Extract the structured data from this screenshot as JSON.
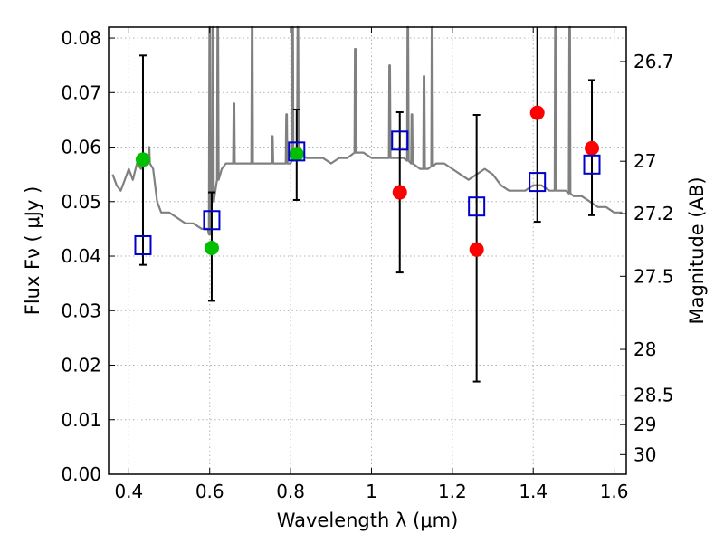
{
  "chart_data": {
    "type": "scatter",
    "title": "",
    "xlabel": "Wavelength  λ (μm)",
    "ylabel": "Flux  Fν  ( μJy )",
    "ylabel_right": "Magnitude (AB)",
    "xlim": [
      0.35,
      1.63
    ],
    "ylim": [
      0.0,
      0.082
    ],
    "grid": true,
    "x_ticks": [
      0.4,
      0.6,
      0.8,
      1.0,
      1.2,
      1.4,
      1.6
    ],
    "x_tick_labels": [
      "0.4",
      "0.6",
      "0.8",
      "1",
      "1.2",
      "1.4",
      "1.6"
    ],
    "y_ticks": [
      0.0,
      0.01,
      0.02,
      0.03,
      0.04,
      0.05,
      0.06,
      0.07,
      0.08
    ],
    "y_tick_labels": [
      "0.00",
      "0.01",
      "0.02",
      "0.03",
      "0.04",
      "0.05",
      "0.06",
      "0.07",
      "0.08"
    ],
    "right_ticks": [
      {
        "label": "26.7",
        "flux": 0.0757
      },
      {
        "label": "27",
        "flux": 0.0574
      },
      {
        "label": "27.2",
        "flux": 0.0478
      },
      {
        "label": "27.5",
        "flux": 0.0363
      },
      {
        "label": "28",
        "flux": 0.0229
      },
      {
        "label": "28.5",
        "flux": 0.0145
      },
      {
        "label": "29",
        "flux": 0.0091
      },
      {
        "label": "30",
        "flux": 0.0036
      }
    ],
    "colors": {
      "spectrum": "#808080",
      "green_points": "#00c000",
      "red_points": "#ff0000",
      "model_squares": "#0000cc",
      "errorbars": "#000000",
      "grid": "#b0b0b0"
    },
    "spectrum": {
      "x": [
        0.36,
        0.37,
        0.38,
        0.39,
        0.4,
        0.41,
        0.42,
        0.43,
        0.44,
        0.45,
        0.46,
        0.47,
        0.48,
        0.49,
        0.5,
        0.52,
        0.54,
        0.56,
        0.58,
        0.595,
        0.6,
        0.605,
        0.61,
        0.62,
        0.63,
        0.64,
        0.65,
        0.66,
        0.67,
        0.68,
        0.7,
        0.72,
        0.74,
        0.76,
        0.78,
        0.8,
        0.82,
        0.84,
        0.86,
        0.88,
        0.9,
        0.92,
        0.94,
        0.96,
        0.98,
        1.0,
        1.02,
        1.04,
        1.06,
        1.08,
        1.1,
        1.12,
        1.14,
        1.16,
        1.18,
        1.2,
        1.22,
        1.24,
        1.26,
        1.28,
        1.3,
        1.32,
        1.34,
        1.36,
        1.38,
        1.4,
        1.42,
        1.44,
        1.46,
        1.48,
        1.5,
        1.52,
        1.54,
        1.56,
        1.58,
        1.6,
        1.62
      ],
      "y": [
        0.055,
        0.053,
        0.052,
        0.054,
        0.056,
        0.054,
        0.057,
        0.056,
        0.058,
        0.057,
        0.056,
        0.05,
        0.048,
        0.048,
        0.048,
        0.047,
        0.046,
        0.046,
        0.045,
        0.045,
        0.044,
        0.05,
        0.05,
        0.054,
        0.056,
        0.057,
        0.057,
        0.057,
        0.057,
        0.057,
        0.057,
        0.057,
        0.057,
        0.057,
        0.057,
        0.057,
        0.059,
        0.058,
        0.058,
        0.058,
        0.057,
        0.058,
        0.058,
        0.059,
        0.059,
        0.058,
        0.058,
        0.058,
        0.058,
        0.058,
        0.057,
        0.056,
        0.056,
        0.057,
        0.057,
        0.056,
        0.055,
        0.054,
        0.055,
        0.056,
        0.055,
        0.053,
        0.052,
        0.052,
        0.052,
        0.053,
        0.053,
        0.052,
        0.052,
        0.052,
        0.051,
        0.051,
        0.05,
        0.049,
        0.049,
        0.048,
        0.048
      ],
      "emission_lines": [
        {
          "x": 0.45,
          "peak": 0.06
        },
        {
          "x": 0.6,
          "peak": 0.082
        },
        {
          "x": 0.608,
          "peak": 0.082
        },
        {
          "x": 0.62,
          "peak": 0.082
        },
        {
          "x": 0.66,
          "peak": 0.068
        },
        {
          "x": 0.705,
          "peak": 0.082
        },
        {
          "x": 0.755,
          "peak": 0.062
        },
        {
          "x": 0.79,
          "peak": 0.066
        },
        {
          "x": 0.805,
          "peak": 0.082
        },
        {
          "x": 0.818,
          "peak": 0.082
        },
        {
          "x": 0.96,
          "peak": 0.078
        },
        {
          "x": 1.045,
          "peak": 0.075
        },
        {
          "x": 1.09,
          "peak": 0.082
        },
        {
          "x": 1.1,
          "peak": 0.066
        },
        {
          "x": 1.13,
          "peak": 0.073
        },
        {
          "x": 1.15,
          "peak": 0.082
        },
        {
          "x": 1.455,
          "peak": 0.082
        },
        {
          "x": 1.49,
          "peak": 0.082
        }
      ]
    },
    "series": [
      {
        "marker": "circle",
        "color": "#00c000",
        "points": [
          {
            "x": 0.435,
            "y": 0.0577,
            "err_low": 0.0384,
            "err_high": 0.0768
          },
          {
            "x": 0.605,
            "y": 0.0415,
            "err_low": 0.0318,
            "err_high": 0.0517
          },
          {
            "x": 0.815,
            "y": 0.0587,
            "err_low": 0.0503,
            "err_high": 0.0669
          }
        ]
      },
      {
        "marker": "circle",
        "color": "#ff0000",
        "points": [
          {
            "x": 1.07,
            "y": 0.0517,
            "err_low": 0.037,
            "err_high": 0.0664
          },
          {
            "x": 1.26,
            "y": 0.0412,
            "err_low": 0.017,
            "err_high": 0.0659
          },
          {
            "x": 1.41,
            "y": 0.0663,
            "err_low": 0.0463,
            "err_high": 0.082
          },
          {
            "x": 1.545,
            "y": 0.0598,
            "err_low": 0.0475,
            "err_high": 0.0723
          }
        ]
      },
      {
        "marker": "square",
        "color": "#0000cc",
        "points": [
          {
            "x": 0.435,
            "y": 0.042
          },
          {
            "x": 0.605,
            "y": 0.0466
          },
          {
            "x": 0.815,
            "y": 0.0592
          },
          {
            "x": 1.07,
            "y": 0.0612
          },
          {
            "x": 1.26,
            "y": 0.0491
          },
          {
            "x": 1.41,
            "y": 0.0536
          },
          {
            "x": 1.545,
            "y": 0.0568
          }
        ]
      }
    ]
  }
}
